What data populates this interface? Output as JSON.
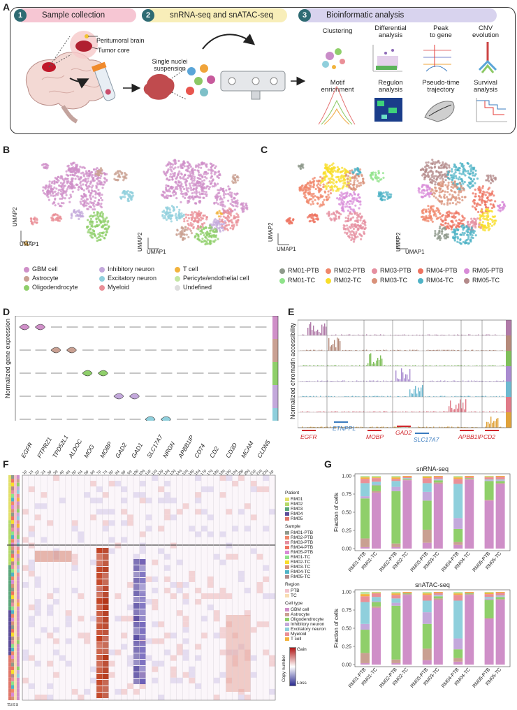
{
  "panels": {
    "a": "A",
    "b": "B",
    "c": "C",
    "d": "D",
    "e": "E",
    "f": "F",
    "g": "G"
  },
  "steps": [
    {
      "num": "1",
      "label": "Sample collection",
      "color": "#f6c6d3"
    },
    {
      "num": "2",
      "label": "snRNA-seq and snATAC-seq",
      "color": "#f8eeb9"
    },
    {
      "num": "3",
      "label": "Bioinformatic analysis",
      "color": "#d8d3ee"
    }
  ],
  "panel_a": {
    "peritumoral": "Peritumoral brain",
    "tumor_core": "Tumor core",
    "single_nuclei": "Single nuclei\nsuspension",
    "analyses": [
      "Clustering",
      "Differential\nanalysis",
      "Peak\nto gene",
      "CNV\nevolution",
      "Motif\nenrichment",
      "Regulon\nanalysis",
      "Pseudo-time\ntrajectory",
      "Survival\nanalysis"
    ]
  },
  "umap": {
    "x": "UMAP1",
    "y": "UMAP2"
  },
  "celltypes": [
    {
      "name": "GBM cell",
      "color": "#cf8fc8"
    },
    {
      "name": "Astrocyte",
      "color": "#c9a092"
    },
    {
      "name": "Oligodendrocyte",
      "color": "#8fcf6a"
    },
    {
      "name": "Inhibitory neuron",
      "color": "#c3a8db"
    },
    {
      "name": "Excitatory neuron",
      "color": "#8fcfdc"
    },
    {
      "name": "Myeloid",
      "color": "#ea8f97"
    },
    {
      "name": "T cell",
      "color": "#f2b33d"
    },
    {
      "name": "Pericyte/endothelial cell",
      "color": "#c3e6a2"
    },
    {
      "name": "Undefined",
      "color": "#dddddd"
    }
  ],
  "samples": [
    {
      "name": "RM01-PTB",
      "color": "#8f9a8c"
    },
    {
      "name": "RM02-PTB",
      "color": "#f0876b"
    },
    {
      "name": "RM03-PTB",
      "color": "#e58fa0"
    },
    {
      "name": "RM04-PTB",
      "color": "#ee7360"
    },
    {
      "name": "RM05-PTB",
      "color": "#d88bd8"
    },
    {
      "name": "RM01-TC",
      "color": "#8fe38a"
    },
    {
      "name": "RM02-TC",
      "color": "#f8de2a"
    },
    {
      "name": "RM03-TC",
      "color": "#d9917a"
    },
    {
      "name": "RM04-TC",
      "color": "#4fb3c6"
    },
    {
      "name": "RM05-TC",
      "color": "#b38a8a"
    }
  ],
  "panel_d": {
    "ylabel": "Normalized gene expression",
    "genes": [
      "EGFR",
      "PTPRZ1",
      "TPD52L1",
      "ALDOC",
      "MOG",
      "MOBP",
      "GAD2",
      "GAD1",
      "SLC17A7",
      "NRGN",
      "APBB1IP",
      "CD74",
      "CD2",
      "CD3D",
      "MCAM",
      "CLDN5"
    ]
  },
  "panel_e": {
    "ylabel": "Normalized chromatin accessibility",
    "genes": [
      {
        "name": "EGFR",
        "color": "#d0262b"
      },
      {
        "name": "ETNPPL",
        "color": "#3a7bbf"
      },
      {
        "name": "MOBP",
        "color": "#d0262b"
      },
      {
        "name": "GAD2",
        "color": "#d0262b"
      },
      {
        "name": "SLC17A7",
        "color": "#3a7bbf"
      },
      {
        "name": "APBB1IP",
        "color": "#d0262b"
      },
      {
        "name": "CD2",
        "color": "#d0262b"
      }
    ]
  },
  "panel_f": {
    "chromosomes": [
      "1p",
      "1q",
      "2p",
      "2q",
      "3p",
      "3q",
      "4p",
      "4q",
      "5p",
      "5q",
      "6p",
      "6q",
      "7p",
      "7q",
      "8p",
      "8q",
      "9p",
      "9q",
      "10p",
      "10q",
      "11p",
      "11q",
      "12p",
      "12q",
      "13q",
      "14q",
      "15q",
      "16p",
      "16q",
      "17p",
      "17q",
      "18p",
      "18q",
      "19p",
      "19q",
      "20p",
      "20q",
      "21p",
      "21q",
      "22q",
      "Xp"
    ],
    "legend_patient_title": "Patient",
    "patients": [
      {
        "name": "RM01",
        "color": "#e3e06a"
      },
      {
        "name": "RM02",
        "color": "#b5d96a"
      },
      {
        "name": "RM03",
        "color": "#5aa67a"
      },
      {
        "name": "RM04",
        "color": "#5b4d9a"
      },
      {
        "name": "RM05",
        "color": "#e0786b"
      }
    ],
    "legend_sample_title": "Sample",
    "legend_region_title": "Region",
    "regions": [
      {
        "name": "PTB",
        "color": "#f2c2cc"
      },
      {
        "name": "TC",
        "color": "#f8ddb2"
      }
    ],
    "legend_celltype_title": "Cell type",
    "celltypes_short": [
      "GBM cell",
      "Astrocyte",
      "Oligodendrocyte",
      "Inhibitory neuron",
      "Excitatory neuron",
      "Myeloid",
      "T cell"
    ],
    "copy_number_title": "Copy number",
    "gain": "Gain",
    "loss": "Loss",
    "rowlabels": [
      "Patient",
      "Sample",
      "Region",
      "Cell type"
    ]
  },
  "panel_g": {
    "ylabel": "Fraction of cells",
    "yticks": [
      "0.00",
      "0.25",
      "0.50",
      "0.75",
      "1.00"
    ]
  },
  "chart_data": [
    {
      "type": "bar",
      "title": "snRNA-seq",
      "ylabel": "Fraction of cells",
      "ylim": [
        0,
        1
      ],
      "categories": [
        "RM01-PTB",
        "RM01-TC",
        "RM02-PTB",
        "RM02-TC",
        "RM03-PTB",
        "RM03-TC",
        "RM04-PTB",
        "RM04-TC",
        "RM05-PTB",
        "RM05-TC"
      ],
      "series": [
        {
          "name": "GBM cell",
          "values": [
            0.02,
            0.77,
            0.02,
            0.94,
            0.08,
            0.89,
            0.05,
            0.95,
            0.66,
            0.89
          ]
        },
        {
          "name": "Astrocyte",
          "values": [
            0.12,
            0.02,
            0.05,
            0.01,
            0.18,
            0.02,
            0.04,
            0.01,
            0.01,
            0.01
          ]
        },
        {
          "name": "Oligodendrocyte",
          "values": [
            0.55,
            0.08,
            0.72,
            0.01,
            0.4,
            0.03,
            0.18,
            0.01,
            0.26,
            0.03
          ]
        },
        {
          "name": "Inhibitory neuron",
          "values": [
            0.03,
            0.01,
            0.06,
            0.0,
            0.12,
            0.01,
            0.15,
            0.0,
            0.01,
            0.01
          ]
        },
        {
          "name": "Excitatory neuron",
          "values": [
            0.18,
            0.04,
            0.08,
            0.01,
            0.12,
            0.01,
            0.47,
            0.0,
            0.01,
            0.01
          ]
        },
        {
          "name": "Myeloid",
          "values": [
            0.06,
            0.05,
            0.03,
            0.02,
            0.07,
            0.03,
            0.07,
            0.02,
            0.03,
            0.04
          ]
        },
        {
          "name": "T cell",
          "values": [
            0.02,
            0.01,
            0.02,
            0.01,
            0.02,
            0.01,
            0.02,
            0.01,
            0.01,
            0.01
          ]
        },
        {
          "name": "Pericyte/endothelial cell",
          "values": [
            0.02,
            0.02,
            0.02,
            0.0,
            0.01,
            0.0,
            0.02,
            0.0,
            0.01,
            0.0
          ]
        }
      ]
    },
    {
      "type": "bar",
      "title": "snATAC-seq",
      "ylabel": "Fraction of cells",
      "ylim": [
        0,
        1
      ],
      "categories": [
        "RM01-PTB",
        "RM01-TC",
        "RM02-PTB",
        "RM02-TC",
        "RM03-PTB",
        "RM03-TC",
        "RM04-PTB",
        "RM04-TC",
        "RM05-PTB",
        "RM05-TC"
      ],
      "series": [
        {
          "name": "GBM cell",
          "values": [
            0.02,
            0.78,
            0.02,
            0.96,
            0.06,
            0.89,
            0.04,
            0.96,
            0.63,
            0.89
          ]
        },
        {
          "name": "Astrocyte",
          "values": [
            0.14,
            0.02,
            0.05,
            0.01,
            0.16,
            0.02,
            0.05,
            0.01,
            0.01,
            0.01
          ]
        },
        {
          "name": "Oligodendrocyte",
          "values": [
            0.32,
            0.06,
            0.74,
            0.01,
            0.34,
            0.03,
            0.12,
            0.01,
            0.25,
            0.03
          ]
        },
        {
          "name": "Inhibitory neuron",
          "values": [
            0.08,
            0.01,
            0.04,
            0.0,
            0.16,
            0.01,
            0.15,
            0.0,
            0.02,
            0.01
          ]
        },
        {
          "name": "Excitatory neuron",
          "values": [
            0.3,
            0.06,
            0.06,
            0.0,
            0.16,
            0.01,
            0.52,
            0.0,
            0.02,
            0.01
          ]
        },
        {
          "name": "Myeloid",
          "values": [
            0.08,
            0.05,
            0.05,
            0.01,
            0.08,
            0.03,
            0.08,
            0.01,
            0.04,
            0.04
          ]
        },
        {
          "name": "T cell",
          "values": [
            0.03,
            0.01,
            0.02,
            0.01,
            0.02,
            0.01,
            0.02,
            0.01,
            0.02,
            0.01
          ]
        },
        {
          "name": "Pericyte/endothelial cell",
          "values": [
            0.03,
            0.01,
            0.02,
            0.0,
            0.02,
            0.0,
            0.02,
            0.0,
            0.01,
            0.0
          ]
        }
      ]
    }
  ]
}
